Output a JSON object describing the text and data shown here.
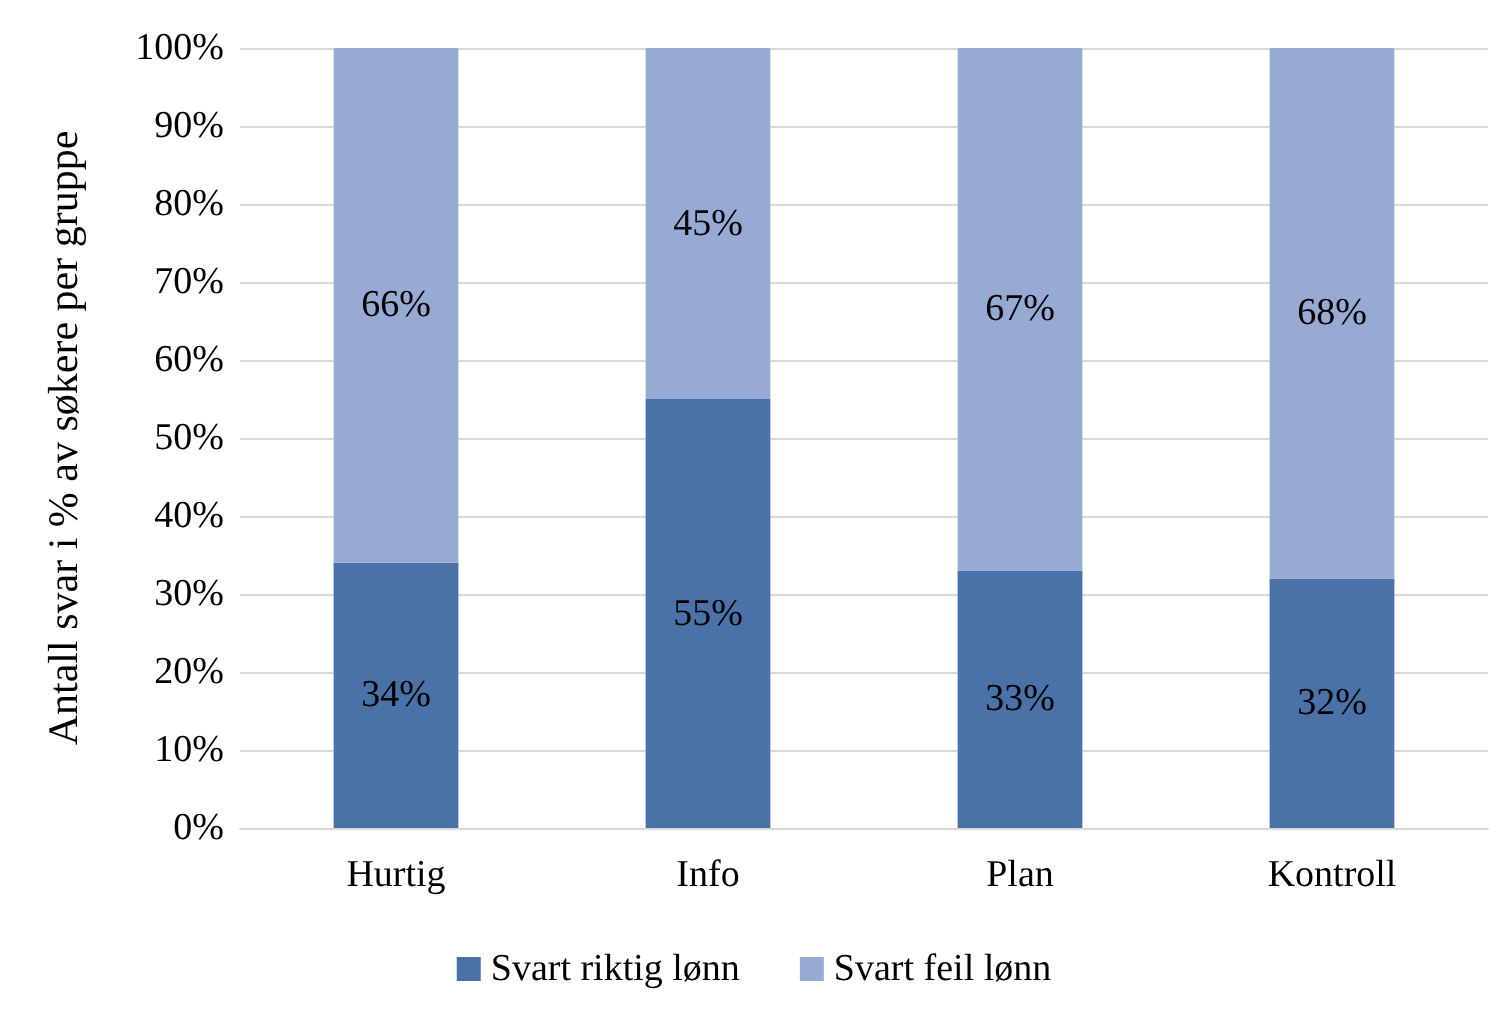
{
  "chart_data": {
    "type": "bar",
    "stacked": true,
    "ylabel": "Antall svar i % av søkere per gruppe",
    "categories": [
      "Hurtig",
      "Info",
      "Plan",
      "Kontroll"
    ],
    "series": [
      {
        "name": "Svart riktig lønn",
        "color": "#4a72a8",
        "values": [
          34,
          55,
          33,
          32
        ],
        "value_labels": [
          "34%",
          "55%",
          "33%",
          "32%"
        ]
      },
      {
        "name": "Svart feil lønn",
        "color": "#97aad3",
        "values": [
          66,
          45,
          67,
          68
        ],
        "value_labels": [
          "66%",
          "45%",
          "67%",
          "68%"
        ]
      }
    ],
    "ylim": [
      0,
      100
    ],
    "yticks": [
      {
        "value": 0,
        "label": "0%"
      },
      {
        "value": 10,
        "label": "10%"
      },
      {
        "value": 20,
        "label": "20%"
      },
      {
        "value": 30,
        "label": "30%"
      },
      {
        "value": 40,
        "label": "40%"
      },
      {
        "value": 50,
        "label": "50%"
      },
      {
        "value": 60,
        "label": "60%"
      },
      {
        "value": 70,
        "label": "70%"
      },
      {
        "value": 80,
        "label": "80%"
      },
      {
        "value": 90,
        "label": "90%"
      },
      {
        "value": 100,
        "label": "100%"
      }
    ],
    "grid": "y",
    "legend": "bottom"
  }
}
